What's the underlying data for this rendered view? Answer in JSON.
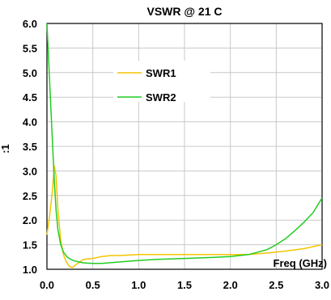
{
  "chart_data": {
    "type": "line",
    "title": "VSWR @ 21 C",
    "xlabel": "Freq (GHz)",
    "ylabel": ":1",
    "xlim": [
      0.0,
      3.0
    ],
    "ylim": [
      1.0,
      6.0
    ],
    "x_ticks": [
      "0.0",
      "0.5",
      "1.0",
      "1.5",
      "2.0",
      "2.5",
      "3.0"
    ],
    "y_ticks": [
      "1.0",
      "1.5",
      "2.0",
      "2.5",
      "3.0",
      "3.5",
      "4.0",
      "4.5",
      "5.0",
      "5.5",
      "6.0"
    ],
    "grid": true,
    "legend_position": "upper-center",
    "series": [
      {
        "name": "SWR1",
        "color": "#f5c400",
        "x": [
          0.0,
          0.03,
          0.06,
          0.08,
          0.1,
          0.12,
          0.15,
          0.18,
          0.21,
          0.25,
          0.28,
          0.32,
          0.36,
          0.4,
          0.5,
          0.6,
          0.7,
          0.8,
          1.0,
          1.2,
          1.5,
          1.8,
          2.0,
          2.2,
          2.4,
          2.6,
          2.8,
          3.0
        ],
        "y": [
          1.7,
          2.1,
          2.6,
          3.1,
          2.9,
          2.2,
          1.6,
          1.3,
          1.15,
          1.05,
          1.04,
          1.1,
          1.15,
          1.2,
          1.22,
          1.26,
          1.28,
          1.28,
          1.3,
          1.3,
          1.3,
          1.3,
          1.3,
          1.3,
          1.33,
          1.37,
          1.42,
          1.5
        ]
      },
      {
        "name": "SWR2",
        "color": "#22cc22",
        "x": [
          0.0,
          0.02,
          0.04,
          0.06,
          0.08,
          0.1,
          0.12,
          0.15,
          0.18,
          0.22,
          0.26,
          0.3,
          0.35,
          0.4,
          0.5,
          0.6,
          0.8,
          1.0,
          1.2,
          1.5,
          1.8,
          2.0,
          2.2,
          2.4,
          2.5,
          2.6,
          2.7,
          2.8,
          2.9,
          3.0
        ],
        "y": [
          6.0,
          5.2,
          4.4,
          3.6,
          2.8,
          2.2,
          1.8,
          1.5,
          1.35,
          1.25,
          1.2,
          1.17,
          1.15,
          1.13,
          1.12,
          1.12,
          1.15,
          1.18,
          1.2,
          1.22,
          1.24,
          1.26,
          1.3,
          1.4,
          1.5,
          1.62,
          1.78,
          1.95,
          2.15,
          2.45
        ]
      }
    ]
  }
}
